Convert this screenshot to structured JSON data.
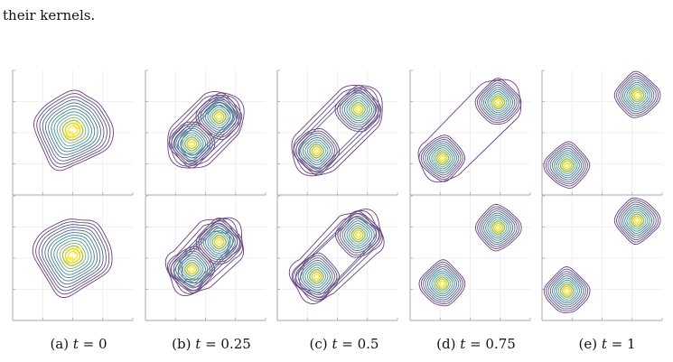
{
  "document": {
    "intro_text": "their kernels."
  },
  "figure": {
    "captions": [
      {
        "tag": "(a)",
        "var": "t",
        "value": "0"
      },
      {
        "tag": "(b)",
        "var": "t",
        "value": "0.25"
      },
      {
        "tag": "(c)",
        "var": "t",
        "value": "0.5"
      },
      {
        "tag": "(d)",
        "var": "t",
        "value": "0.75"
      },
      {
        "tag": "(e)",
        "var": "t",
        "value": "1"
      }
    ],
    "time_values": [
      0,
      0.25,
      0.5,
      0.75,
      1
    ],
    "rows": 2,
    "columns": 5,
    "colors": {
      "frame": "#a8a8a8",
      "grid": "#ececec",
      "contour_low": "#6b3e7f",
      "contour_mid": "#3a8e9a",
      "contour_high": "#fde725"
    }
  }
}
